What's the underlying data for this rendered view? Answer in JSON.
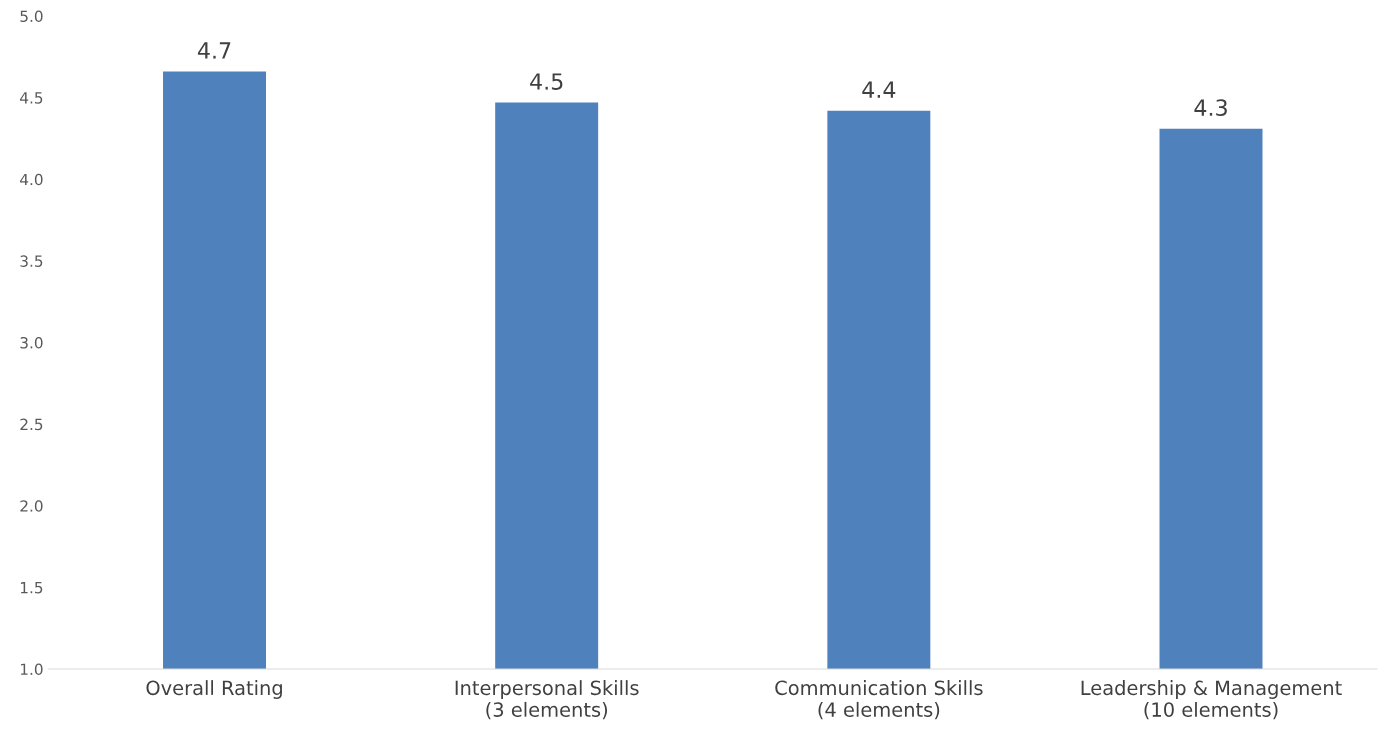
{
  "chart_data": {
    "type": "bar",
    "categories": [
      "Overall Rating",
      "Interpersonal Skills\n(3 elements)",
      "Communication Skills\n(4 elements)",
      "Leadership & Management\n(10 elements)"
    ],
    "values": [
      4.66,
      4.47,
      4.42,
      4.31
    ],
    "value_labels": [
      "4.7",
      "4.5",
      "4.4",
      "4.3"
    ],
    "color": "#4f81bd",
    "ylim": [
      1.0,
      5.0
    ],
    "yticks": [
      {
        "value": 1.0,
        "label": "1.0"
      },
      {
        "value": 1.5,
        "label": "1.5"
      },
      {
        "value": 2.0,
        "label": "2.0"
      },
      {
        "value": 2.5,
        "label": "2.5"
      },
      {
        "value": 3.0,
        "label": "3.0"
      },
      {
        "value": 3.5,
        "label": "3.5"
      },
      {
        "value": 4.0,
        "label": "4.0"
      },
      {
        "value": 4.5,
        "label": "4.5"
      },
      {
        "value": 5.0,
        "label": "5.0"
      }
    ],
    "grid": false
  }
}
